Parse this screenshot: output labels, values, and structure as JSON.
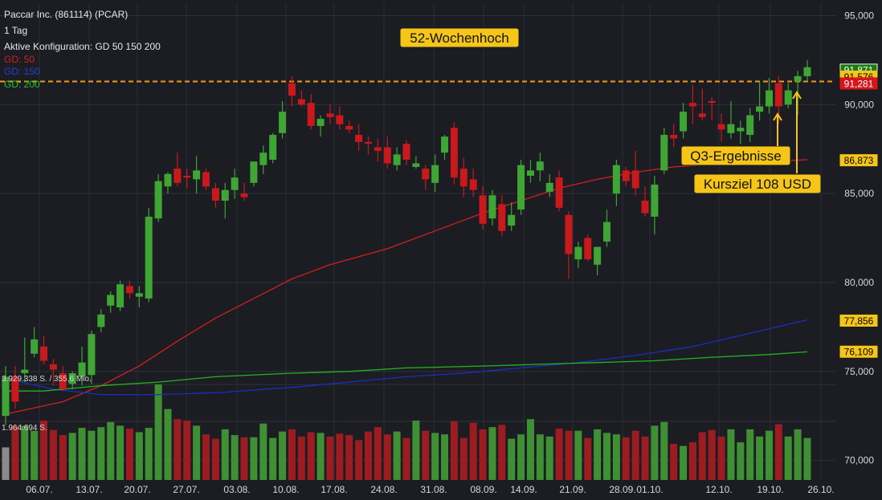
{
  "header": {
    "title": "Paccar Inc. (861114) (PCAR)",
    "interval": "1 Tag",
    "config": "Aktive Konfiguration: GD 50 150 200",
    "ma50_label": "GD: 50",
    "ma150_label": "GD: 150",
    "ma200_label": "GD: 200"
  },
  "colors": {
    "background": "#1b1d22",
    "up": "#3fa535",
    "down": "#c8191d",
    "ma50": "#d02020",
    "ma150": "#1a2fbf",
    "ma200": "#22b422",
    "resistance": "#f29a1f",
    "annotation_bg": "#f5c518"
  },
  "icons": [
    "up-arrow-icon"
  ],
  "chart_data": {
    "type": "candlestick",
    "y_ticks": [
      "95,000",
      "90,000",
      "85,000",
      "80,000",
      "75,000",
      "70,000"
    ],
    "y_range": [
      68.9,
      95.7
    ],
    "x_ticks": [
      "06.07.",
      "13.07.",
      "20.07.",
      "27.07.",
      "03.08.",
      "10.08.",
      "17.08.",
      "24.08.",
      "31.08.",
      "08.09.",
      "14.09.",
      "21.09.",
      "28.09.",
      "01.10.",
      "12.10.",
      "19.10.",
      "26.10."
    ],
    "volume_labels": [
      "3.929.338 S. / 355,6 Mio.",
      "1.964.694 S."
    ],
    "price_badges": [
      {
        "value": "91,871",
        "style": "green"
      },
      {
        "value": "91,576",
        "style": "yellow"
      },
      {
        "value": "91,281",
        "style": "red"
      },
      {
        "value": "86,873",
        "style": "yellow"
      },
      {
        "value": "77,856",
        "style": "yellow"
      },
      {
        "value": "76,109",
        "style": "yellow"
      }
    ],
    "resistance_level": 91.3,
    "annotations": [
      "52-Wochenhoch",
      "Q3-Ergebnisse",
      "Kursziel 108 USD"
    ],
    "candles": [
      {
        "o": 72.5,
        "h": 75.3,
        "l": 72.0,
        "c": 74.7
      },
      {
        "o": 74.7,
        "h": 75.3,
        "l": 72.9,
        "c": 73.3
      },
      {
        "o": 74.9,
        "h": 76.9,
        "l": 74.4,
        "c": 75.1
      },
      {
        "o": 76.0,
        "h": 77.5,
        "l": 75.8,
        "c": 76.8
      },
      {
        "o": 76.4,
        "h": 77.0,
        "l": 75.4,
        "c": 75.6
      },
      {
        "o": 75.4,
        "h": 75.7,
        "l": 74.2,
        "c": 75.1
      },
      {
        "o": 74.9,
        "h": 75.3,
        "l": 73.9,
        "c": 74.0
      },
      {
        "o": 74.3,
        "h": 75.0,
        "l": 74.0,
        "c": 74.9
      },
      {
        "o": 74.7,
        "h": 76.4,
        "l": 74.2,
        "c": 75.5
      },
      {
        "o": 74.8,
        "h": 77.3,
        "l": 74.3,
        "c": 77.1
      },
      {
        "o": 77.5,
        "h": 78.5,
        "l": 77.2,
        "c": 78.2
      },
      {
        "o": 78.7,
        "h": 79.5,
        "l": 78.3,
        "c": 79.3
      },
      {
        "o": 78.6,
        "h": 80.1,
        "l": 78.4,
        "c": 79.9
      },
      {
        "o": 79.8,
        "h": 80.1,
        "l": 79.1,
        "c": 79.4
      },
      {
        "o": 79.2,
        "h": 79.8,
        "l": 78.6,
        "c": 79.4
      },
      {
        "o": 79.1,
        "h": 84.2,
        "l": 78.9,
        "c": 83.7
      },
      {
        "o": 83.6,
        "h": 86.1,
        "l": 83.4,
        "c": 85.7
      },
      {
        "o": 85.4,
        "h": 86.2,
        "l": 85.0,
        "c": 86.1
      },
      {
        "o": 86.4,
        "h": 87.3,
        "l": 85.4,
        "c": 85.6
      },
      {
        "o": 86.0,
        "h": 86.4,
        "l": 85.3,
        "c": 85.9
      },
      {
        "o": 85.8,
        "h": 87.1,
        "l": 85.0,
        "c": 86.3
      },
      {
        "o": 86.2,
        "h": 86.4,
        "l": 85.2,
        "c": 85.4
      },
      {
        "o": 85.3,
        "h": 85.6,
        "l": 84.2,
        "c": 84.6
      },
      {
        "o": 84.6,
        "h": 85.6,
        "l": 83.6,
        "c": 85.2
      },
      {
        "o": 85.2,
        "h": 86.4,
        "l": 84.7,
        "c": 85.9
      },
      {
        "o": 85.0,
        "h": 85.6,
        "l": 84.6,
        "c": 84.8
      },
      {
        "o": 85.6,
        "h": 86.8,
        "l": 85.4,
        "c": 86.8
      },
      {
        "o": 86.6,
        "h": 87.7,
        "l": 86.1,
        "c": 87.3
      },
      {
        "o": 86.9,
        "h": 88.4,
        "l": 86.7,
        "c": 88.3
      },
      {
        "o": 88.4,
        "h": 90.2,
        "l": 88.1,
        "c": 89.6
      },
      {
        "o": 91.2,
        "h": 91.6,
        "l": 89.9,
        "c": 90.5
      },
      {
        "o": 90.3,
        "h": 90.8,
        "l": 89.9,
        "c": 90.0
      },
      {
        "o": 90.1,
        "h": 90.6,
        "l": 88.6,
        "c": 88.8
      },
      {
        "o": 88.8,
        "h": 89.4,
        "l": 88.2,
        "c": 89.2
      },
      {
        "o": 89.5,
        "h": 90.0,
        "l": 88.9,
        "c": 89.3
      },
      {
        "o": 89.4,
        "h": 89.9,
        "l": 88.6,
        "c": 88.9
      },
      {
        "o": 88.8,
        "h": 89.1,
        "l": 88.4,
        "c": 88.6
      },
      {
        "o": 88.3,
        "h": 88.9,
        "l": 87.4,
        "c": 87.9
      },
      {
        "o": 87.9,
        "h": 88.2,
        "l": 87.2,
        "c": 87.8
      },
      {
        "o": 87.6,
        "h": 88.1,
        "l": 86.8,
        "c": 87.4
      },
      {
        "o": 87.6,
        "h": 88.2,
        "l": 86.4,
        "c": 86.7
      },
      {
        "o": 86.6,
        "h": 87.6,
        "l": 86.3,
        "c": 87.2
      },
      {
        "o": 87.8,
        "h": 88.0,
        "l": 86.6,
        "c": 86.9
      },
      {
        "o": 86.5,
        "h": 87.1,
        "l": 86.4,
        "c": 86.7
      },
      {
        "o": 86.4,
        "h": 86.6,
        "l": 85.2,
        "c": 85.8
      },
      {
        "o": 85.6,
        "h": 87.2,
        "l": 85.1,
        "c": 86.6
      },
      {
        "o": 87.3,
        "h": 88.3,
        "l": 86.9,
        "c": 88.2
      },
      {
        "o": 88.7,
        "h": 89.0,
        "l": 85.5,
        "c": 85.9
      },
      {
        "o": 86.4,
        "h": 87.0,
        "l": 84.8,
        "c": 85.4
      },
      {
        "o": 85.8,
        "h": 86.4,
        "l": 84.8,
        "c": 85.2
      },
      {
        "o": 84.9,
        "h": 85.4,
        "l": 83.0,
        "c": 83.3
      },
      {
        "o": 83.6,
        "h": 85.2,
        "l": 83.2,
        "c": 84.9
      },
      {
        "o": 84.4,
        "h": 84.9,
        "l": 82.6,
        "c": 82.9
      },
      {
        "o": 83.2,
        "h": 84.5,
        "l": 82.9,
        "c": 83.8
      },
      {
        "o": 84.1,
        "h": 86.9,
        "l": 83.8,
        "c": 86.6
      },
      {
        "o": 86.0,
        "h": 86.9,
        "l": 85.6,
        "c": 86.3
      },
      {
        "o": 86.3,
        "h": 87.3,
        "l": 85.7,
        "c": 86.8
      },
      {
        "o": 85.1,
        "h": 86.1,
        "l": 84.8,
        "c": 85.6
      },
      {
        "o": 85.9,
        "h": 86.3,
        "l": 84.0,
        "c": 84.2
      },
      {
        "o": 83.8,
        "h": 84.0,
        "l": 80.2,
        "c": 81.6
      },
      {
        "o": 81.3,
        "h": 82.3,
        "l": 80.8,
        "c": 82.0
      },
      {
        "o": 82.5,
        "h": 82.7,
        "l": 81.2,
        "c": 81.3
      },
      {
        "o": 81.0,
        "h": 82.0,
        "l": 80.4,
        "c": 82.0
      },
      {
        "o": 82.3,
        "h": 84.1,
        "l": 82.0,
        "c": 83.4
      },
      {
        "o": 85.0,
        "h": 86.9,
        "l": 84.3,
        "c": 86.6
      },
      {
        "o": 86.3,
        "h": 86.5,
        "l": 85.4,
        "c": 85.7
      },
      {
        "o": 86.3,
        "h": 87.4,
        "l": 84.9,
        "c": 85.3
      },
      {
        "o": 84.6,
        "h": 85.4,
        "l": 83.7,
        "c": 83.9
      },
      {
        "o": 83.7,
        "h": 86.0,
        "l": 82.7,
        "c": 85.5
      },
      {
        "o": 86.3,
        "h": 88.7,
        "l": 86.1,
        "c": 88.3
      },
      {
        "o": 88.3,
        "h": 88.9,
        "l": 87.6,
        "c": 88.1
      },
      {
        "o": 88.5,
        "h": 90.1,
        "l": 88.1,
        "c": 89.6
      },
      {
        "o": 90.1,
        "h": 91.1,
        "l": 88.9,
        "c": 89.9
      },
      {
        "o": 89.5,
        "h": 90.9,
        "l": 89.1,
        "c": 89.3
      },
      {
        "o": 90.2,
        "h": 90.4,
        "l": 89.1,
        "c": 90.1
      },
      {
        "o": 88.9,
        "h": 89.5,
        "l": 87.9,
        "c": 88.6
      },
      {
        "o": 88.4,
        "h": 90.2,
        "l": 88.1,
        "c": 88.9
      },
      {
        "o": 88.5,
        "h": 89.1,
        "l": 87.8,
        "c": 88.7
      },
      {
        "o": 88.3,
        "h": 89.8,
        "l": 87.9,
        "c": 89.4
      },
      {
        "o": 89.6,
        "h": 91.3,
        "l": 89.1,
        "c": 89.9
      },
      {
        "o": 89.9,
        "h": 91.5,
        "l": 89.5,
        "c": 90.8
      },
      {
        "o": 91.2,
        "h": 91.6,
        "l": 88.9,
        "c": 89.9
      },
      {
        "o": 90.0,
        "h": 91.2,
        "l": 89.8,
        "c": 90.8
      },
      {
        "o": 91.3,
        "h": 91.9,
        "l": 89.4,
        "c": 91.6
      },
      {
        "o": 91.6,
        "h": 92.5,
        "l": 91.3,
        "c": 92.1
      }
    ],
    "volumes": [
      0.45,
      0.75,
      0.75,
      0.68,
      0.82,
      0.69,
      0.62,
      0.65,
      0.72,
      0.68,
      0.73,
      0.8,
      0.75,
      0.71,
      0.66,
      0.72,
      1.32,
      0.98,
      0.84,
      0.82,
      0.75,
      0.63,
      0.57,
      0.7,
      0.62,
      0.59,
      0.59,
      0.78,
      0.58,
      0.67,
      0.7,
      0.6,
      0.66,
      0.65,
      0.6,
      0.64,
      0.62,
      0.55,
      0.67,
      0.73,
      0.63,
      0.67,
      0.58,
      0.82,
      0.68,
      0.65,
      0.63,
      0.81,
      0.58,
      0.79,
      0.7,
      0.73,
      0.76,
      0.57,
      0.63,
      0.84,
      0.63,
      0.6,
      0.71,
      0.68,
      0.68,
      0.58,
      0.7,
      0.65,
      0.63,
      0.59,
      0.68,
      0.6,
      0.75,
      0.8,
      0.5,
      0.47,
      0.52,
      0.66,
      0.69,
      0.6,
      0.7,
      0.52,
      0.7,
      0.6,
      0.68,
      0.77,
      0.6,
      0.7,
      0.58
    ]
  }
}
